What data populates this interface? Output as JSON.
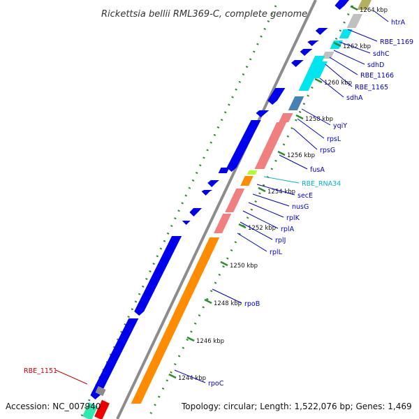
{
  "title": "Rickettsia bellii RML369-C, complete genome",
  "accession": "Accession: NC_007940",
  "summary": "Topology: circular; Length: 1,522,076 bp; Genes: 1,469",
  "colors": {
    "cds": "#0000ee",
    "rRNA_like": "#f08080",
    "rpo": "#ff8c00",
    "sdh": "#00e5ee",
    "gray": "#c0c0c0",
    "olive": "#b5b060",
    "steel": "#4682b4",
    "lime": "#adff2f",
    "label_default": "#0000cc",
    "label_rna": "#00b3cc",
    "label_red": "#cc0000",
    "tick_green": "#2e8b2e",
    "backbone": "#8c8c8c"
  },
  "ticks": [
    {
      "label": "1264 kbp"
    },
    {
      "label": "1262 kbp"
    },
    {
      "label": "1260 kbp"
    },
    {
      "label": "1258 kbp"
    },
    {
      "label": "1256 kbp"
    },
    {
      "label": "1254 kbp"
    },
    {
      "label": "1252 kbp"
    },
    {
      "label": "1250 kbp"
    },
    {
      "label": "1248 kbp"
    },
    {
      "label": "1246 kbp"
    },
    {
      "label": "1244 kbp"
    }
  ],
  "gene_labels": [
    {
      "text": "htrA",
      "color": "#0000cc"
    },
    {
      "text": "RBE_1169",
      "color": "#0000cc"
    },
    {
      "text": "sdhC",
      "color": "#0000cc"
    },
    {
      "text": "sdhD",
      "color": "#0000cc"
    },
    {
      "text": "RBE_1166",
      "color": "#0000cc"
    },
    {
      "text": "RBE_1165",
      "color": "#0000cc"
    },
    {
      "text": "sdhA",
      "color": "#0000cc"
    },
    {
      "text": "yqiY",
      "color": "#0000cc"
    },
    {
      "text": "rpsL",
      "color": "#0000cc"
    },
    {
      "text": "rpsG",
      "color": "#0000cc"
    },
    {
      "text": "fusA",
      "color": "#0000cc"
    },
    {
      "text": "RBE_RNA34",
      "color": "#00b3cc"
    },
    {
      "text": "secE",
      "color": "#0000cc"
    },
    {
      "text": "nusG",
      "color": "#0000cc"
    },
    {
      "text": "rplK",
      "color": "#0000cc"
    },
    {
      "text": "rplA",
      "color": "#0000cc"
    },
    {
      "text": "rplJ",
      "color": "#0000cc"
    },
    {
      "text": "rplL",
      "color": "#0000cc"
    },
    {
      "text": "rpoB",
      "color": "#0000cc"
    },
    {
      "text": "rpoC",
      "color": "#0000cc"
    },
    {
      "text": "RBE_1151",
      "color": "#cc0000"
    }
  ]
}
